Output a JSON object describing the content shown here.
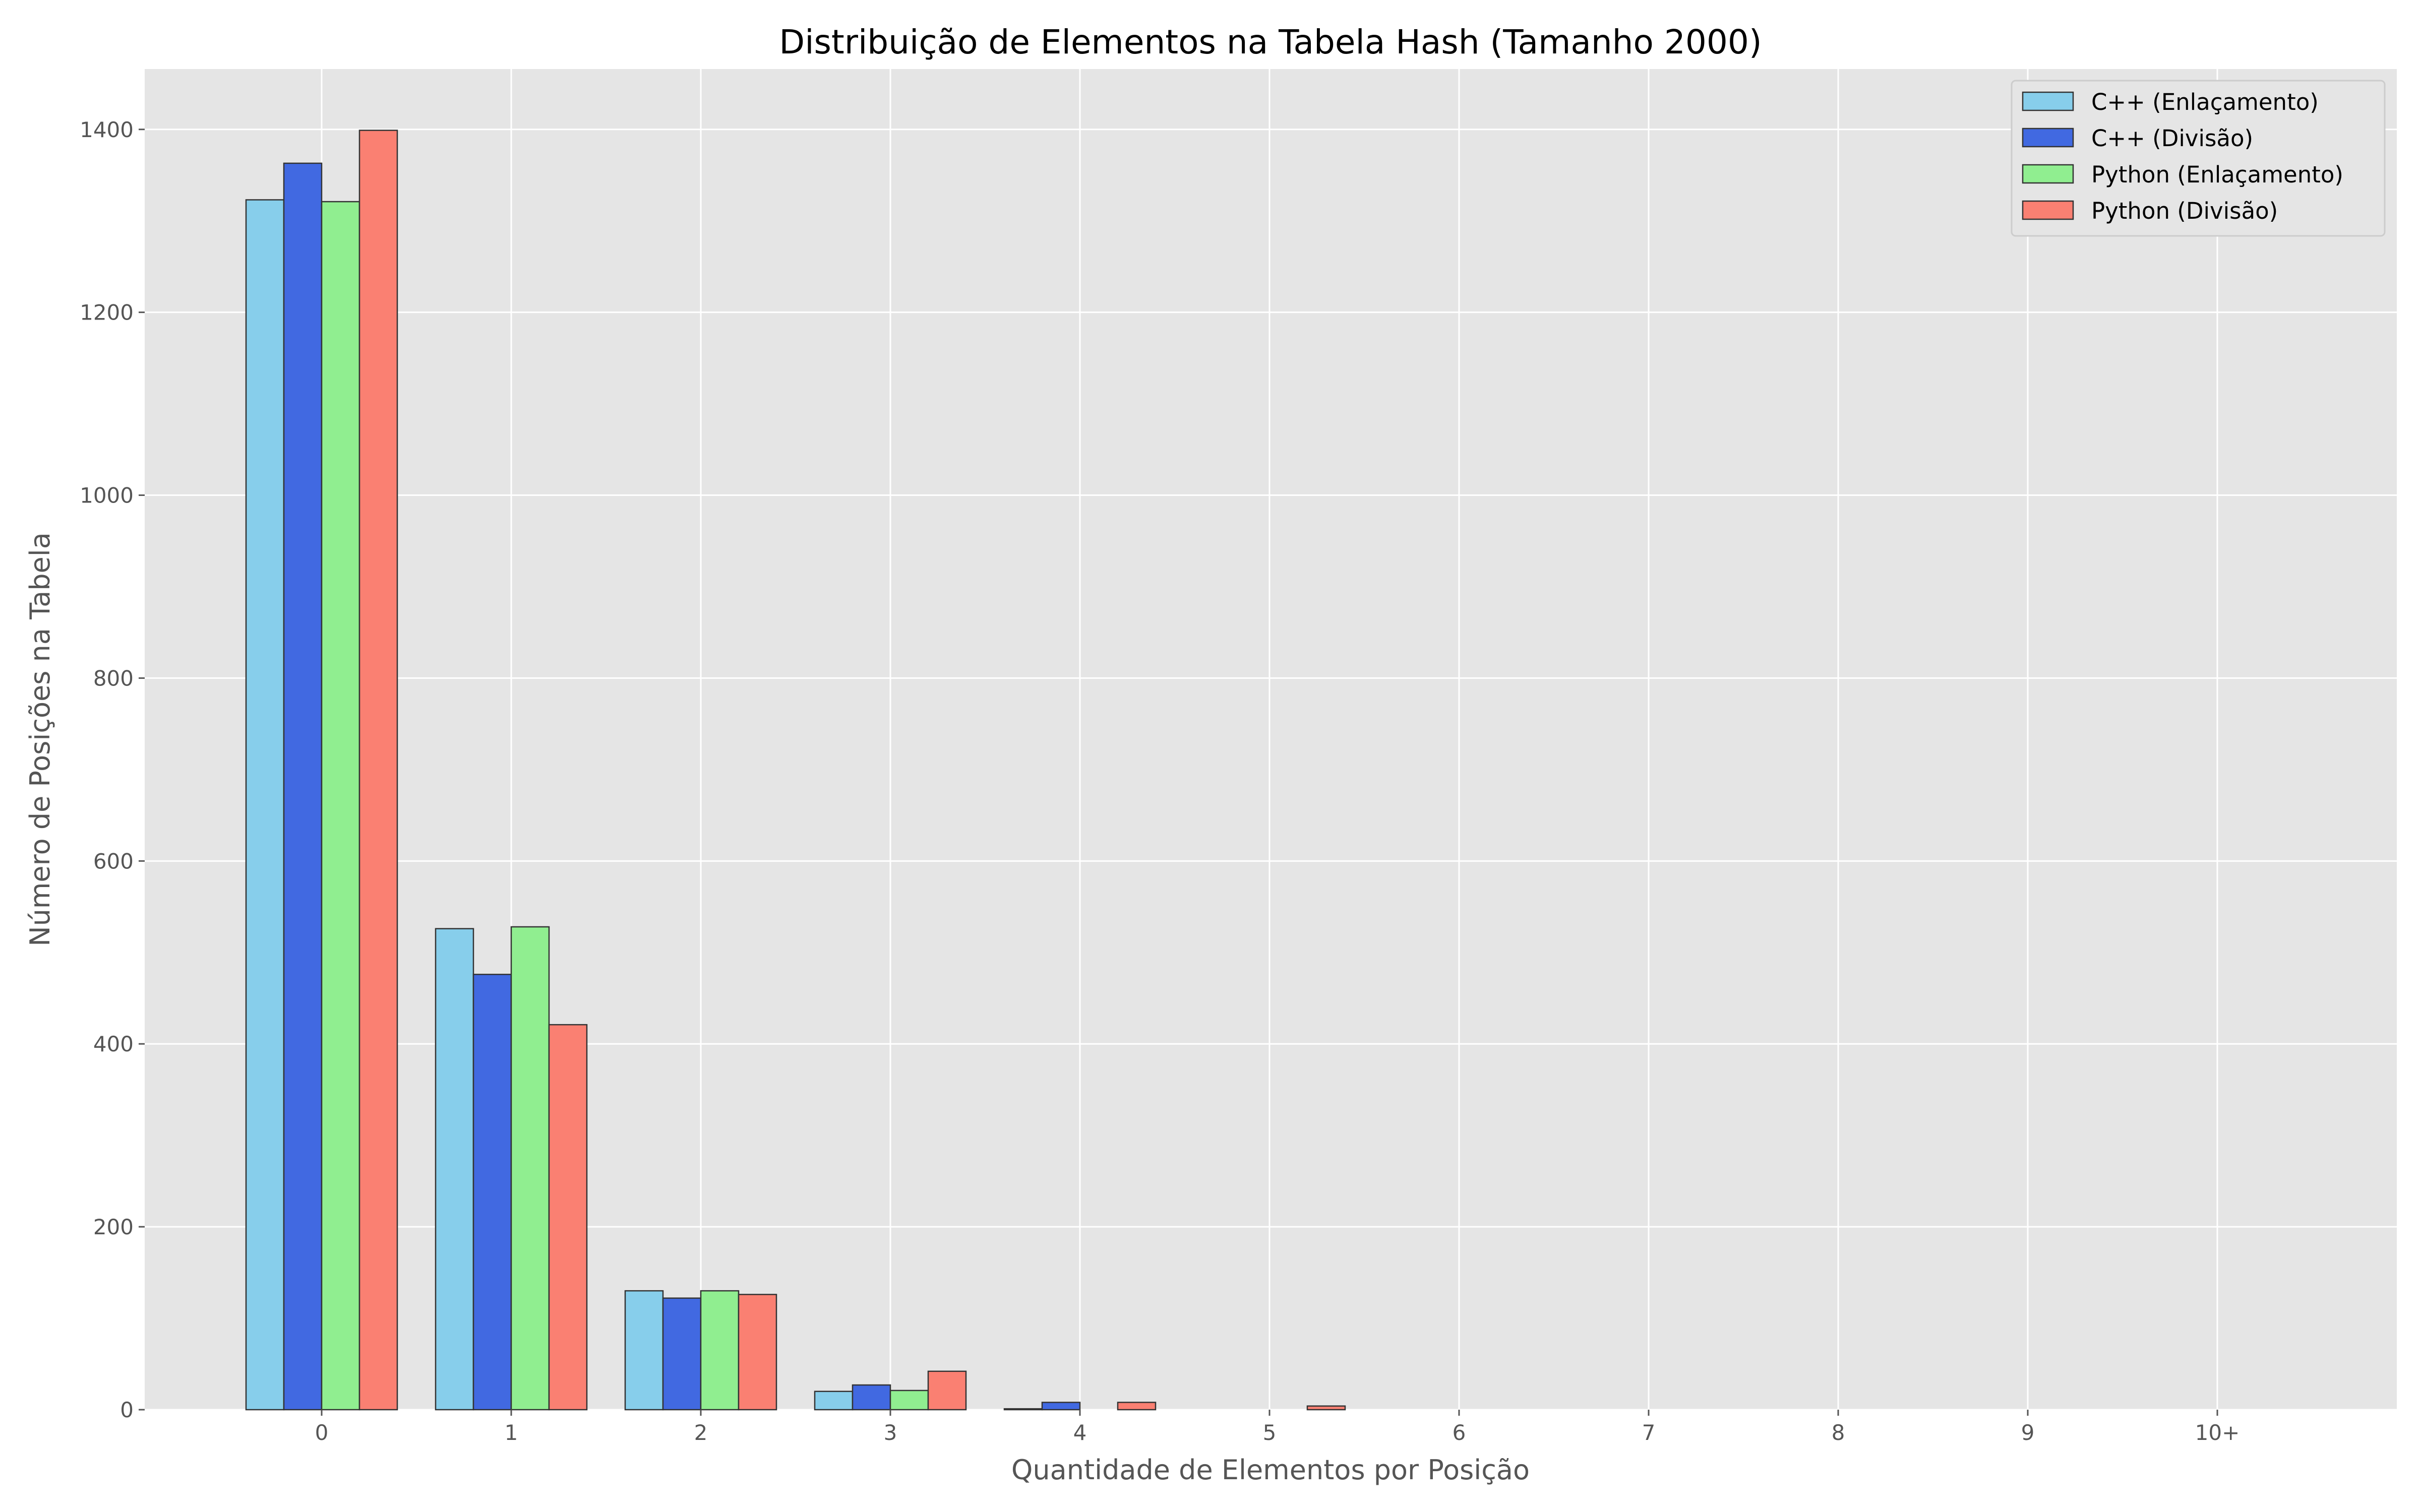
{
  "chart_data": {
    "type": "bar",
    "title": "Distribuição de Elementos na Tabela Hash (Tamanho 2000)",
    "xlabel": "Quantidade de Elementos por Posição",
    "ylabel": "Número de Posições na Tabela",
    "categories": [
      "0",
      "1",
      "2",
      "3",
      "4",
      "5",
      "6",
      "7",
      "8",
      "9",
      "10+"
    ],
    "yticks": [
      "0",
      "200",
      "400",
      "600",
      "800",
      "1000",
      "1200",
      "1400"
    ],
    "ylim": [
      0,
      1466
    ],
    "grid": true,
    "legend_position": "top-right",
    "series": [
      {
        "name": "C++ (Enlaçamento)",
        "color": "#87ceeb",
        "values": [
          1323,
          526,
          130,
          20,
          1,
          0,
          0,
          0,
          0,
          0,
          0
        ]
      },
      {
        "name": "C++ (Divisão)",
        "color": "#4169e1",
        "values": [
          1363,
          476,
          122,
          27,
          8,
          0,
          0,
          0,
          0,
          0,
          0
        ]
      },
      {
        "name": "Python (Enlaçamento)",
        "color": "#90ee90",
        "values": [
          1321,
          528,
          130,
          21,
          0,
          0,
          0,
          0,
          0,
          0,
          0
        ]
      },
      {
        "name": "Python (Divisão)",
        "color": "#fa8072",
        "values": [
          1399,
          421,
          126,
          42,
          8,
          4,
          0,
          0,
          0,
          0,
          0
        ]
      }
    ]
  }
}
